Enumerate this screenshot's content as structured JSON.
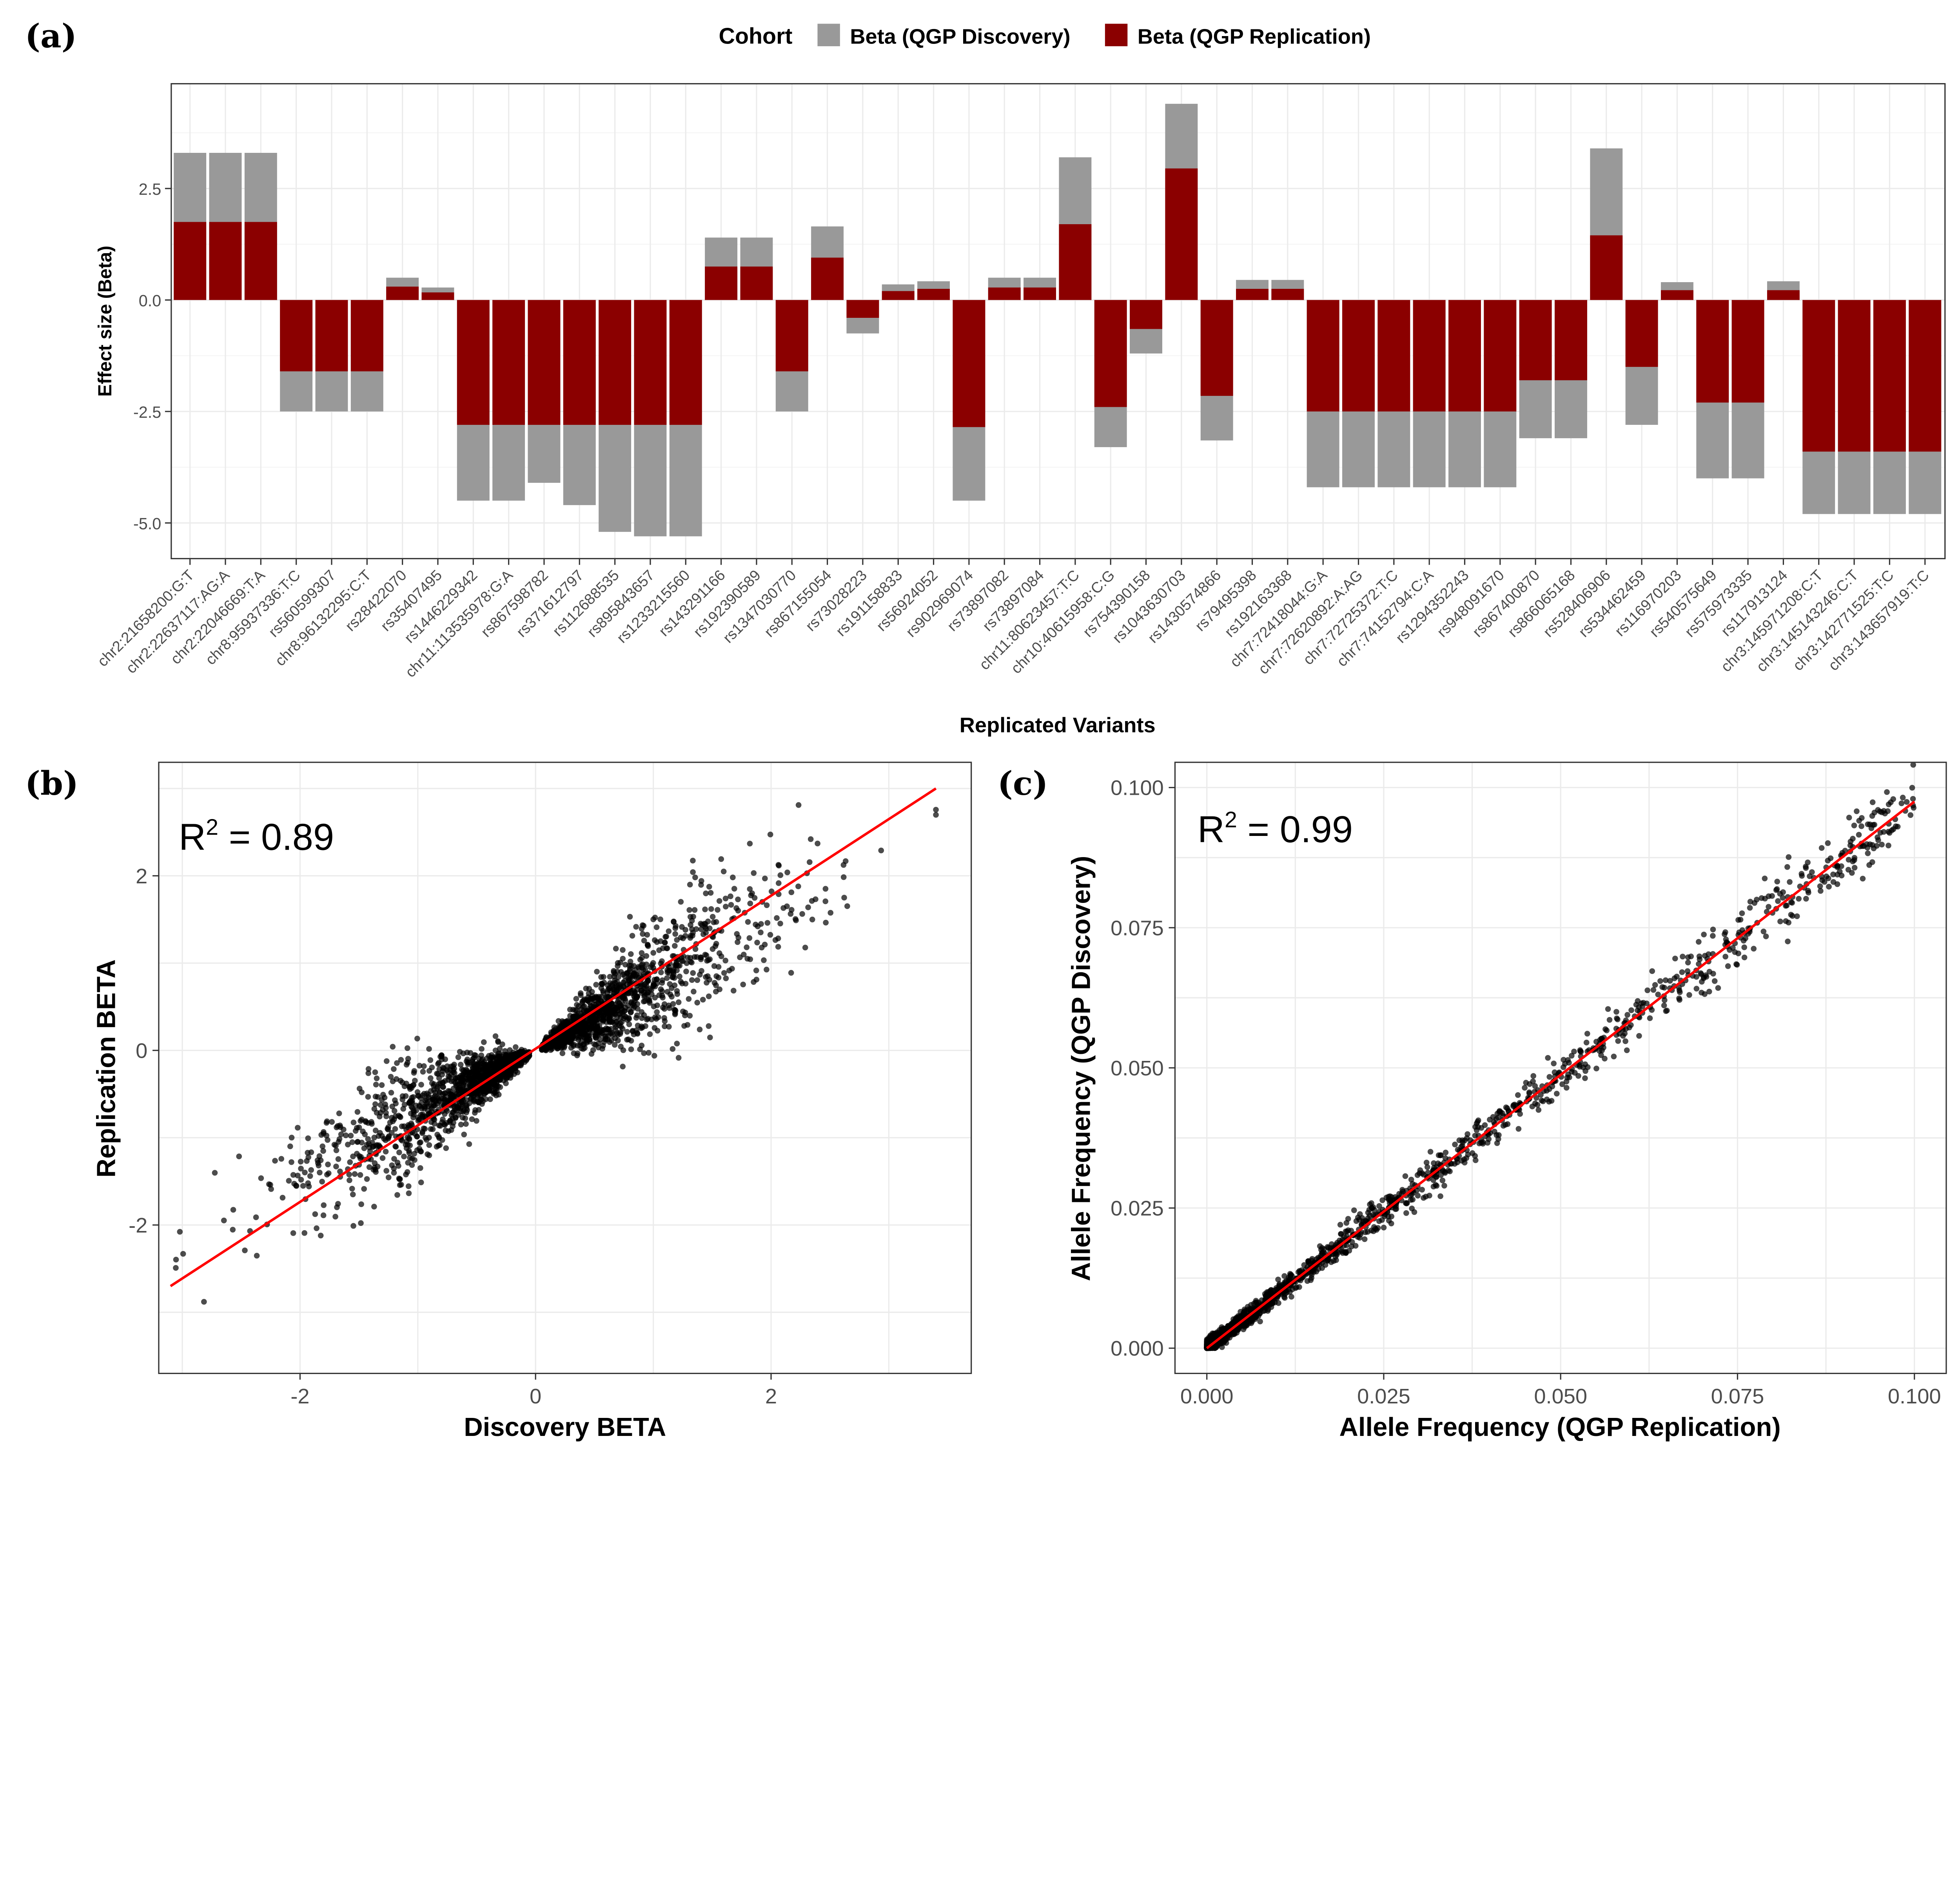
{
  "colors": {
    "discovery": "#999999",
    "replication": "#8B0000",
    "fit_line": "#FF0000",
    "points": "#000000"
  },
  "chart_data": [
    {
      "panel": "(a)",
      "type": "bar",
      "title": "",
      "xlabel": "Replicated Variants",
      "ylabel": "Effect size (Beta)",
      "ylim": [
        -5.8,
        4.85
      ],
      "yticks": [
        "2.5",
        "0.0",
        "-2.5",
        "-5.0"
      ],
      "ytick_values": [
        2.5,
        0,
        -2.5,
        -5.0
      ],
      "legend": {
        "title": "Cohort",
        "position": "top",
        "entries": [
          "Beta (QGP Discovery)",
          "Beta (QGP Replication)"
        ]
      },
      "categories": [
        "chr2:21658200:G:T",
        "chr2:22637117:AG:A",
        "chr2:22046669:T:A",
        "chr8:95937336:T:C",
        "rs560599307",
        "chr8:96132295:C:T",
        "rs28422070",
        "rs35407495",
        "rs1446229342",
        "chr11:113535978:G:A",
        "rs867598782",
        "rs371612797",
        "rs112688535",
        "rs895843657",
        "rs1233215560",
        "rs143291166",
        "rs192390589",
        "rs1347030770",
        "rs867155054",
        "rs73028223",
        "rs191158833",
        "rs56924052",
        "rs902969074",
        "rs73897082",
        "rs73897084",
        "chr11:80623457:T:C",
        "chr10:40615958:C:G",
        "rs754390158",
        "rs1043630703",
        "rs1430574866",
        "rs79495398",
        "rs192163368",
        "chr7:72418044:G:A",
        "chr7:72620892:A:AG",
        "chr7:72725372:T:C",
        "chr7:74152794:C:A",
        "rs1294352243",
        "rs948091670",
        "rs867400870",
        "rs866065168",
        "rs528406906",
        "rs534462459",
        "rs116970203",
        "rs540575649",
        "rs575973335",
        "rs117913124",
        "chr3:145971208:C:T",
        "chr3:145143246:C:T",
        "chr3:142771525:T:C",
        "chr3:143657919:T:C"
      ],
      "series": [
        {
          "name": "Beta (QGP Discovery)",
          "values": [
            3.3,
            3.3,
            3.3,
            -2.5,
            -2.5,
            -2.5,
            0.5,
            0.28,
            -4.5,
            -4.5,
            -4.1,
            -4.6,
            -5.2,
            -5.3,
            -5.3,
            1.4,
            1.4,
            -2.5,
            1.65,
            -0.75,
            0.35,
            0.42,
            -4.5,
            0.5,
            0.5,
            3.2,
            -3.3,
            -1.2,
            4.4,
            -3.15,
            0.45,
            0.45,
            -4.2,
            -4.2,
            -4.2,
            -4.2,
            -4.2,
            -4.2,
            -3.1,
            -3.1,
            3.4,
            -2.8,
            0.4,
            -4.0,
            -4.0,
            0.42,
            -4.8,
            -4.8,
            -4.8,
            -4.8
          ]
        },
        {
          "name": "Beta (QGP Replication)",
          "values": [
            1.75,
            1.75,
            1.75,
            -1.6,
            -1.6,
            -1.6,
            0.3,
            0.17,
            -2.8,
            -2.8,
            -2.8,
            -2.8,
            -2.8,
            -2.8,
            -2.8,
            0.75,
            0.75,
            -1.6,
            0.95,
            -0.4,
            0.2,
            0.25,
            -2.85,
            0.28,
            0.28,
            1.7,
            -2.4,
            -0.65,
            2.95,
            -2.15,
            0.25,
            0.25,
            -2.5,
            -2.5,
            -2.5,
            -2.5,
            -2.5,
            -2.5,
            -1.8,
            -1.8,
            1.45,
            -1.5,
            0.22,
            -2.3,
            -2.3,
            0.22,
            -3.4,
            -3.4,
            -3.4,
            -3.4
          ]
        }
      ]
    },
    {
      "panel": "(b)",
      "type": "scatter",
      "xlabel": "Discovery BETA",
      "ylabel": "Replication BETA",
      "xlim": [
        -3.2,
        3.7
      ],
      "ylim": [
        -3.7,
        3.3
      ],
      "xticks": [
        "-2",
        "0",
        "2"
      ],
      "xtick_values": [
        -2,
        0,
        2
      ],
      "yticks": [
        "2",
        "0",
        "-2"
      ],
      "ytick_values": [
        2,
        0,
        -2
      ],
      "annotation": {
        "prefix": "R",
        "sup": "2",
        "text": " = 0.89"
      },
      "fit_line": {
        "x": [
          -3.1,
          3.4
        ],
        "y": [
          -2.7,
          3.0
        ]
      },
      "point_clusters": [
        {
          "x_range": [
            -3.1,
            -0.05
          ],
          "slope": 0.72,
          "spread": 0.35,
          "count": 1400
        },
        {
          "x_range": [
            0.05,
            3.4
          ],
          "slope": 0.78,
          "spread": 0.38,
          "count": 1400
        }
      ]
    },
    {
      "panel": "(c)",
      "type": "scatter",
      "xlabel": "Allele Frequency (QGP Replication)",
      "ylabel": "Allele Frequency (QGP Discovery)",
      "xlim": [
        -0.0045,
        0.1045
      ],
      "ylim": [
        -0.0045,
        0.1045
      ],
      "xticks": [
        "0.000",
        "0.025",
        "0.050",
        "0.075",
        "0.100"
      ],
      "xtick_values": [
        0,
        0.025,
        0.05,
        0.075,
        0.1
      ],
      "yticks": [
        "0.100",
        "0.075",
        "0.050",
        "0.025",
        "0.000"
      ],
      "ytick_values": [
        0.1,
        0.075,
        0.05,
        0.025,
        0
      ],
      "annotation": {
        "prefix": "R",
        "sup": "2",
        "text": " = 0.99"
      },
      "fit_line": {
        "x": [
          0,
          0.1
        ],
        "y": [
          0,
          0.0975
        ]
      },
      "point_clusters": [
        {
          "x_range": [
            0,
            0.1
          ],
          "slope": 0.975,
          "spread": 0.0022,
          "count": 1800
        }
      ]
    }
  ]
}
